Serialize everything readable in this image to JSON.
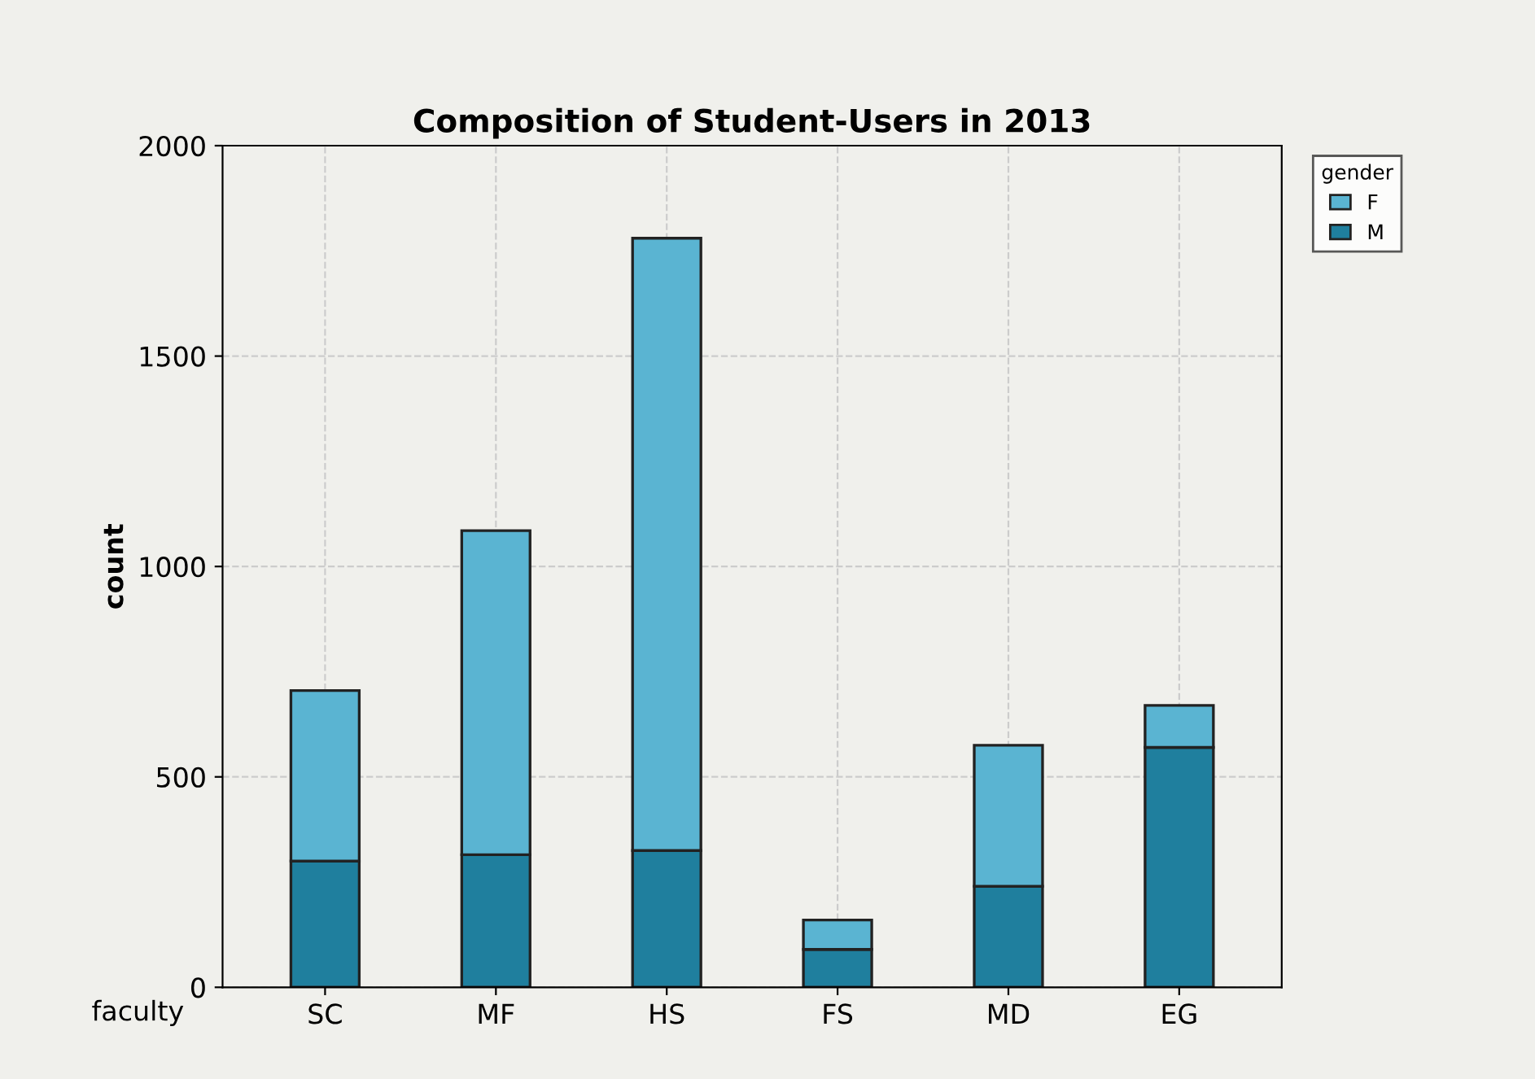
{
  "chart_data": {
    "type": "bar",
    "title": "Composition of Student-Users in 2013",
    "xlabel": "faculty",
    "ylabel": "count",
    "legend_title": "gender",
    "categories": [
      "SC",
      "MF",
      "HS",
      "FS",
      "MD",
      "EG"
    ],
    "stacked": true,
    "series": [
      {
        "name": "M",
        "color": "#1f7f9e",
        "values": [
          300,
          315,
          325,
          90,
          240,
          570
        ]
      },
      {
        "name": "F",
        "color": "#5ab4d2",
        "values": [
          405,
          770,
          1455,
          70,
          335,
          100
        ]
      }
    ],
    "ylim": [
      0,
      2000
    ],
    "yticks": [
      0,
      500,
      1000,
      1500,
      2000
    ],
    "grid": true,
    "legend": "top right"
  }
}
